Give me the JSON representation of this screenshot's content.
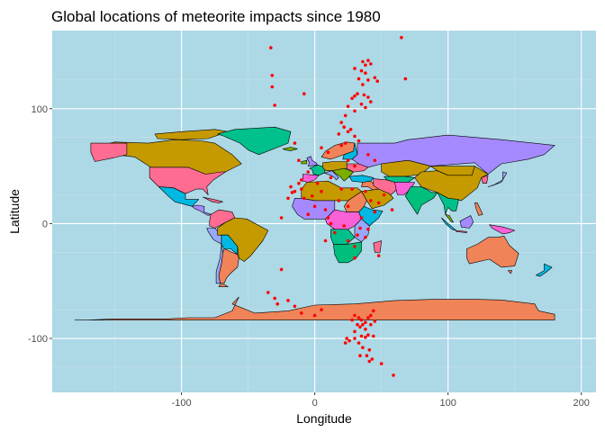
{
  "chart_data": {
    "type": "scatter",
    "title": "Global locations of meteorite impacts since 1980",
    "xlabel": "Longitude",
    "ylabel": "Latitude",
    "xlim": [
      -197,
      211
    ],
    "ylim": [
      -147,
      168
    ],
    "x_ticks": [
      -100,
      0,
      100,
      200
    ],
    "x_tick_labels": [
      "-100",
      "0",
      "100",
      "200"
    ],
    "y_ticks": [
      -100,
      0,
      100
    ],
    "y_tick_labels": [
      "-100",
      "0",
      "100"
    ],
    "grid": true,
    "legend": "none",
    "colors": {
      "panel_background": "#add8e6",
      "grid_major": "#ffffff",
      "grid_minor": "#c4e1ec",
      "points": "#ff0000",
      "antarctica": "#f08358",
      "country_palette": [
        "#c49a00",
        "#00c08b",
        "#ff6c91",
        "#a58aff",
        "#00b9e3",
        "#7cae00",
        "#f08358",
        "#00bf7d",
        "#fb61d7",
        "#99a8ff"
      ]
    },
    "points": [
      [
        -33,
        153
      ],
      [
        -32,
        129
      ],
      [
        -32,
        119
      ],
      [
        -30,
        103
      ],
      [
        -8,
        113
      ],
      [
        65,
        162
      ],
      [
        68,
        126
      ],
      [
        36,
        141
      ],
      [
        38,
        138
      ],
      [
        40,
        142
      ],
      [
        42,
        139
      ],
      [
        35,
        133
      ],
      [
        38,
        131
      ],
      [
        30,
        135
      ],
      [
        33,
        126
      ],
      [
        36,
        121
      ],
      [
        40,
        125
      ],
      [
        45,
        127
      ],
      [
        47,
        124
      ],
      [
        32,
        113
      ],
      [
        28,
        109
      ],
      [
        25,
        102
      ],
      [
        30,
        111
      ],
      [
        37,
        112
      ],
      [
        40,
        110
      ],
      [
        42,
        106
      ],
      [
        35,
        104
      ],
      [
        38,
        101
      ],
      [
        30,
        98
      ],
      [
        23,
        94
      ],
      [
        20,
        88
      ],
      [
        22,
        84
      ],
      [
        25,
        80
      ],
      [
        18,
        78
      ],
      [
        27,
        82
      ],
      [
        30,
        76
      ],
      [
        33,
        72
      ],
      [
        23,
        70
      ],
      [
        20,
        68
      ],
      [
        10,
        62
      ],
      [
        5,
        66
      ],
      [
        -15,
        70
      ],
      [
        -12,
        55
      ],
      [
        -10,
        38
      ],
      [
        -10,
        30
      ],
      [
        -17,
        27
      ],
      [
        -20,
        22
      ],
      [
        -2,
        24
      ],
      [
        -5,
        45
      ],
      [
        12,
        40
      ],
      [
        25,
        55
      ],
      [
        30,
        50
      ],
      [
        40,
        60
      ],
      [
        45,
        55
      ],
      [
        -12,
        35
      ],
      [
        -15,
        28
      ],
      [
        -18,
        32
      ],
      [
        -25,
        5
      ],
      [
        -5,
        8
      ],
      [
        -8,
        22
      ],
      [
        0,
        15
      ],
      [
        5,
        28
      ],
      [
        8,
        12
      ],
      [
        10,
        5
      ],
      [
        12,
        0
      ],
      [
        2,
        35
      ],
      [
        18,
        20
      ],
      [
        20,
        30
      ],
      [
        25,
        15
      ],
      [
        28,
        30
      ],
      [
        35,
        5
      ],
      [
        42,
        20
      ],
      [
        45,
        10
      ],
      [
        40,
        -5
      ],
      [
        32,
        -10
      ],
      [
        22,
        -2
      ],
      [
        25,
        -15
      ],
      [
        30,
        -20
      ],
      [
        34,
        -4
      ],
      [
        38,
        -12
      ],
      [
        15,
        -8
      ],
      [
        8,
        -15
      ],
      [
        48,
        18
      ],
      [
        52,
        25
      ],
      [
        58,
        12
      ],
      [
        38,
        28
      ],
      [
        30,
        -30
      ],
      [
        48,
        -28
      ],
      [
        -25,
        -40
      ],
      [
        -35,
        -60
      ],
      [
        -30,
        -65
      ],
      [
        -28,
        -70
      ],
      [
        -20,
        -67
      ],
      [
        -15,
        -72
      ],
      [
        -10,
        -78
      ],
      [
        0,
        -80
      ],
      [
        5,
        -75
      ],
      [
        30,
        -80
      ],
      [
        33,
        -82
      ],
      [
        35,
        -84
      ],
      [
        38,
        -86
      ],
      [
        40,
        -82
      ],
      [
        42,
        -80
      ],
      [
        44,
        -76
      ],
      [
        28,
        -84
      ],
      [
        36,
        -88
      ],
      [
        32,
        -88
      ],
      [
        30,
        -94
      ],
      [
        34,
        -90
      ],
      [
        38,
        -92
      ],
      [
        42,
        -88
      ],
      [
        40,
        -97
      ],
      [
        45,
        -85
      ],
      [
        35,
        -98
      ],
      [
        38,
        -99
      ],
      [
        44,
        -98
      ],
      [
        30,
        -100
      ],
      [
        26,
        -102
      ],
      [
        23,
        -104
      ],
      [
        24,
        -100
      ],
      [
        33,
        -104
      ],
      [
        36,
        -108
      ],
      [
        41,
        -110
      ],
      [
        34,
        -115
      ],
      [
        41,
        -120
      ],
      [
        50,
        -122
      ],
      [
        59,
        -132
      ],
      [
        43,
        -118
      ],
      [
        39,
        -115
      ]
    ]
  }
}
